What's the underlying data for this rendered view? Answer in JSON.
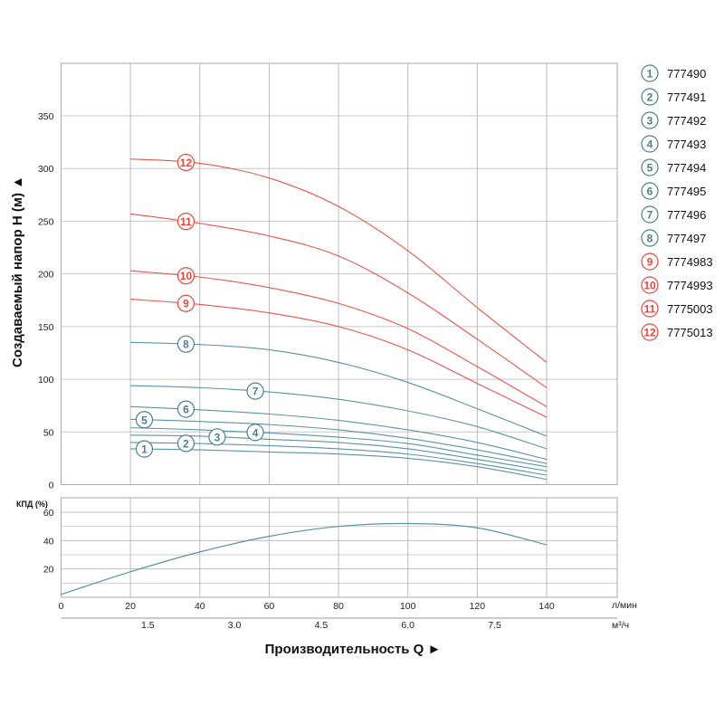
{
  "chart_data": [
    {
      "type": "line",
      "title": "",
      "ylabel": "Создаваемый напор H (м) ▲",
      "xlabel": "Производительность Q ►",
      "x_unit_primary": "л/мин",
      "x_unit_secondary": "м³/ч",
      "xlim": [
        0,
        160
      ],
      "ylim": [
        0,
        400
      ],
      "x_ticks": [
        20,
        40,
        60,
        80,
        100,
        120,
        140
      ],
      "y_ticks": [
        0,
        50,
        100,
        150,
        200,
        250,
        300,
        350
      ],
      "secondary_x_ticks": [
        "1.5",
        "3.0",
        "4.5",
        "6.0",
        "7.5"
      ],
      "secondary_x_tick_values_lpm": [
        25,
        50,
        75,
        100,
        125
      ],
      "grid": true,
      "legend_position": "right",
      "x": [
        20,
        40,
        60,
        80,
        100,
        120,
        140
      ],
      "series": [
        {
          "label": "1",
          "name": "777490",
          "color": "#5a93a4",
          "values": [
            34,
            33,
            31,
            29,
            25,
            17,
            5
          ]
        },
        {
          "label": "2",
          "name": "777491",
          "color": "#5a93a4",
          "values": [
            40,
            39,
            37,
            34,
            29,
            20,
            9
          ]
        },
        {
          "label": "3",
          "name": "777492",
          "color": "#5a93a4",
          "values": [
            47,
            46,
            43,
            40,
            34,
            24,
            13
          ]
        },
        {
          "label": "4",
          "name": "777493",
          "color": "#5a93a4",
          "values": [
            54,
            52,
            49,
            45,
            39,
            28,
            17
          ]
        },
        {
          "label": "5",
          "name": "777494",
          "color": "#5a93a4",
          "values": [
            62,
            60,
            57,
            52,
            44,
            33,
            20
          ]
        },
        {
          "label": "6",
          "name": "777495",
          "color": "#5a93a4",
          "values": [
            74,
            71,
            67,
            61,
            52,
            40,
            24
          ]
        },
        {
          "label": "7",
          "name": "777496",
          "color": "#5a93a4",
          "values": [
            94,
            92,
            88,
            81,
            70,
            55,
            34
          ]
        },
        {
          "label": "8",
          "name": "777497",
          "color": "#5a93a4",
          "values": [
            135,
            133,
            128,
            116,
            97,
            72,
            46
          ]
        },
        {
          "label": "9",
          "name": "7774983",
          "color": "#e8554a",
          "values": [
            176,
            171,
            163,
            150,
            128,
            96,
            64
          ]
        },
        {
          "label": "10",
          "name": "7774993",
          "color": "#e8554a",
          "values": [
            203,
            197,
            187,
            172,
            148,
            112,
            74
          ]
        },
        {
          "label": "11",
          "name": "7775003",
          "color": "#e8554a",
          "values": [
            257,
            248,
            236,
            217,
            182,
            138,
            92
          ]
        },
        {
          "label": "12",
          "name": "7775013",
          "color": "#e8554a",
          "values": [
            309,
            305,
            291,
            264,
            222,
            168,
            116
          ]
        }
      ]
    },
    {
      "type": "line",
      "ylabel": "КПД (%)",
      "xlim": [
        0,
        160
      ],
      "ylim": [
        0,
        70
      ],
      "y_ticks": [
        20,
        40,
        60
      ],
      "x_ticks": [
        0,
        20,
        40,
        60,
        80,
        100,
        120,
        140
      ],
      "grid": true,
      "series": [
        {
          "name": "КПД",
          "color": "#5a93a4",
          "x": [
            0,
            20,
            40,
            60,
            80,
            100,
            120,
            140
          ],
          "values": [
            2,
            18,
            32,
            43,
            50,
            52,
            49,
            37
          ]
        }
      ]
    }
  ]
}
